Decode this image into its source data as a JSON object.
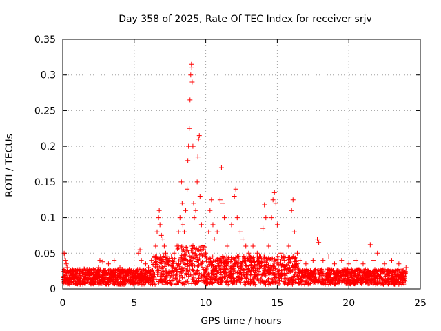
{
  "chart_data": {
    "type": "scatter",
    "title": "Day 358 of 2025, Rate Of TEC Index for receiver srjv",
    "xlabel": "GPS time / hours",
    "ylabel": "ROTI / TECUs",
    "xlim": [
      0,
      25
    ],
    "ylim": [
      0,
      0.35
    ],
    "xticks": [
      0,
      5,
      10,
      15,
      20,
      25
    ],
    "yticks": [
      0,
      0.05,
      0.1,
      0.15,
      0.2,
      0.25,
      0.3,
      0.35
    ],
    "xtick_labels": [
      "0",
      "5",
      "10",
      "15",
      "20",
      "25"
    ],
    "ytick_labels": [
      "0",
      "0.05",
      "0.1",
      "0.15",
      "0.2",
      "0.25",
      "0.3",
      "0.35"
    ],
    "grid": true,
    "marker": "+",
    "color": "#ff0000",
    "series": [
      {
        "name": "ROTI",
        "points": [
          [
            0.1,
            0.05
          ],
          [
            0.15,
            0.045
          ],
          [
            0.2,
            0.04
          ],
          [
            0.25,
            0.035
          ],
          [
            0.3,
            0.03
          ],
          [
            0.5,
            0.022
          ],
          [
            1.0,
            0.025
          ],
          [
            1.5,
            0.028
          ],
          [
            2.0,
            0.022
          ],
          [
            2.5,
            0.03
          ],
          [
            2.6,
            0.04
          ],
          [
            2.8,
            0.038
          ],
          [
            3.2,
            0.035
          ],
          [
            3.6,
            0.04
          ],
          [
            4.0,
            0.03
          ],
          [
            4.5,
            0.025
          ],
          [
            5.0,
            0.022
          ],
          [
            5.3,
            0.05
          ],
          [
            5.4,
            0.055
          ],
          [
            5.5,
            0.04
          ],
          [
            5.8,
            0.035
          ],
          [
            6.0,
            0.03
          ],
          [
            6.2,
            0.04
          ],
          [
            6.5,
            0.06
          ],
          [
            6.6,
            0.08
          ],
          [
            6.7,
            0.1
          ],
          [
            6.75,
            0.11
          ],
          [
            6.8,
            0.09
          ],
          [
            6.9,
            0.075
          ],
          [
            7.0,
            0.07
          ],
          [
            7.1,
            0.06
          ],
          [
            7.2,
            0.05
          ],
          [
            7.4,
            0.04
          ],
          [
            7.6,
            0.045
          ],
          [
            7.8,
            0.05
          ],
          [
            8.0,
            0.06
          ],
          [
            8.1,
            0.08
          ],
          [
            8.2,
            0.1
          ],
          [
            8.3,
            0.15
          ],
          [
            8.35,
            0.12
          ],
          [
            8.4,
            0.09
          ],
          [
            8.5,
            0.08
          ],
          [
            8.6,
            0.11
          ],
          [
            8.7,
            0.14
          ],
          [
            8.75,
            0.18
          ],
          [
            8.8,
            0.2
          ],
          [
            8.85,
            0.225
          ],
          [
            8.9,
            0.265
          ],
          [
            8.95,
            0.3
          ],
          [
            9.0,
            0.315
          ],
          [
            9.02,
            0.31
          ],
          [
            9.05,
            0.29
          ],
          [
            9.1,
            0.2
          ],
          [
            9.15,
            0.12
          ],
          [
            9.2,
            0.1
          ],
          [
            9.3,
            0.11
          ],
          [
            9.4,
            0.15
          ],
          [
            9.45,
            0.185
          ],
          [
            9.5,
            0.21
          ],
          [
            9.55,
            0.215
          ],
          [
            9.6,
            0.13
          ],
          [
            9.7,
            0.09
          ],
          [
            9.8,
            0.06
          ],
          [
            10.0,
            0.05
          ],
          [
            10.2,
            0.08
          ],
          [
            10.3,
            0.11
          ],
          [
            10.4,
            0.125
          ],
          [
            10.5,
            0.09
          ],
          [
            10.6,
            0.07
          ],
          [
            10.8,
            0.08
          ],
          [
            11.0,
            0.125
          ],
          [
            11.1,
            0.17
          ],
          [
            11.2,
            0.12
          ],
          [
            11.3,
            0.1
          ],
          [
            11.5,
            0.06
          ],
          [
            11.8,
            0.09
          ],
          [
            12.0,
            0.13
          ],
          [
            12.1,
            0.14
          ],
          [
            12.2,
            0.1
          ],
          [
            12.4,
            0.08
          ],
          [
            12.6,
            0.07
          ],
          [
            12.8,
            0.06
          ],
          [
            13.0,
            0.05
          ],
          [
            13.3,
            0.06
          ],
          [
            13.6,
            0.05
          ],
          [
            14.0,
            0.085
          ],
          [
            14.1,
            0.118
          ],
          [
            14.2,
            0.1
          ],
          [
            14.4,
            0.06
          ],
          [
            14.6,
            0.1
          ],
          [
            14.7,
            0.125
          ],
          [
            14.8,
            0.135
          ],
          [
            14.9,
            0.12
          ],
          [
            15.0,
            0.09
          ],
          [
            15.2,
            0.05
          ],
          [
            15.5,
            0.04
          ],
          [
            15.8,
            0.06
          ],
          [
            16.0,
            0.11
          ],
          [
            16.1,
            0.125
          ],
          [
            16.2,
            0.08
          ],
          [
            16.4,
            0.05
          ],
          [
            16.6,
            0.04
          ],
          [
            17.0,
            0.035
          ],
          [
            17.5,
            0.04
          ],
          [
            17.8,
            0.07
          ],
          [
            17.9,
            0.065
          ],
          [
            18.2,
            0.04
          ],
          [
            18.6,
            0.045
          ],
          [
            19.0,
            0.035
          ],
          [
            19.5,
            0.04
          ],
          [
            20.0,
            0.035
          ],
          [
            20.5,
            0.04
          ],
          [
            21.0,
            0.035
          ],
          [
            21.5,
            0.062
          ],
          [
            21.7,
            0.04
          ],
          [
            22.0,
            0.05
          ],
          [
            22.5,
            0.035
          ],
          [
            23.0,
            0.04
          ],
          [
            23.5,
            0.035
          ],
          [
            24.0,
            0.03
          ]
        ]
      }
    ]
  }
}
